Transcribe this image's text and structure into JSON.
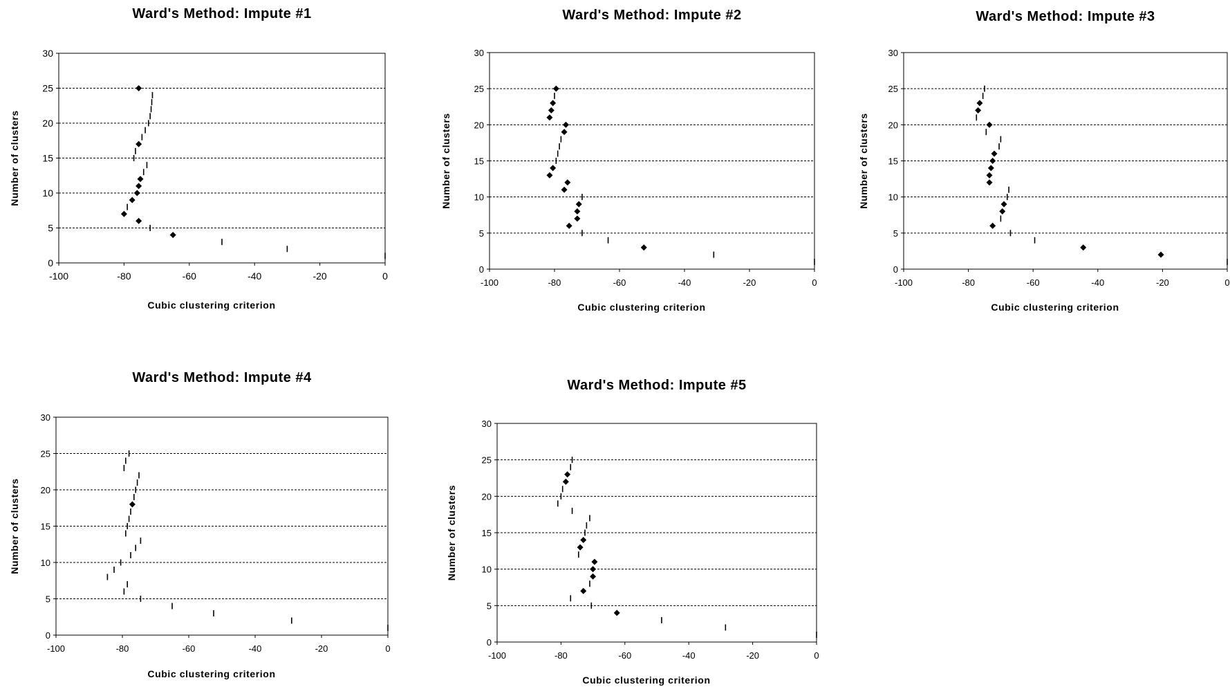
{
  "chart_data": [
    {
      "type": "scatter",
      "title": "Ward's Method: Impute #1",
      "xlabel": "Cubic clustering criterion",
      "ylabel": "Number of clusters",
      "xlim": [
        -100,
        0
      ],
      "ylim": [
        0,
        30
      ],
      "xticks": [
        "-100",
        "-80",
        "-60",
        "-40",
        "-20",
        "0"
      ],
      "yticks": [
        "0",
        "5",
        "10",
        "15",
        "20",
        "25",
        "30"
      ],
      "grid": "horizontal dashed",
      "legend": "none",
      "points": [
        {
          "n": 1,
          "ccc": 0,
          "marker": "dash"
        },
        {
          "n": 2,
          "ccc": -30,
          "marker": "dash"
        },
        {
          "n": 3,
          "ccc": -50,
          "marker": "dash"
        },
        {
          "n": 4,
          "ccc": -65,
          "marker": "diamond"
        },
        {
          "n": 5,
          "ccc": -72,
          "marker": "dash"
        },
        {
          "n": 6,
          "ccc": -75.5,
          "marker": "diamond"
        },
        {
          "n": 7,
          "ccc": -80,
          "marker": "diamond"
        },
        {
          "n": 8,
          "ccc": -79,
          "marker": "dash"
        },
        {
          "n": 9,
          "ccc": -77.5,
          "marker": "diamond"
        },
        {
          "n": 10,
          "ccc": -76,
          "marker": "diamond"
        },
        {
          "n": 11,
          "ccc": -75.5,
          "marker": "diamond"
        },
        {
          "n": 12,
          "ccc": -75,
          "marker": "diamond"
        },
        {
          "n": 13,
          "ccc": -74,
          "marker": "dash"
        },
        {
          "n": 14,
          "ccc": -73,
          "marker": "dash"
        },
        {
          "n": 15,
          "ccc": -77,
          "marker": "dash"
        },
        {
          "n": 16,
          "ccc": -76.5,
          "marker": "dash"
        },
        {
          "n": 17,
          "ccc": -75.5,
          "marker": "diamond"
        },
        {
          "n": 18,
          "ccc": -74.5,
          "marker": "dash"
        },
        {
          "n": 19,
          "ccc": -73.5,
          "marker": "dash"
        },
        {
          "n": 20,
          "ccc": -72.5,
          "marker": "dash"
        },
        {
          "n": 21,
          "ccc": -72,
          "marker": "dash"
        },
        {
          "n": 22,
          "ccc": -71.7,
          "marker": "dash"
        },
        {
          "n": 23,
          "ccc": -71.5,
          "marker": "dash"
        },
        {
          "n": 24,
          "ccc": -71.3,
          "marker": "dash"
        },
        {
          "n": 25,
          "ccc": -75.5,
          "marker": "diamond"
        }
      ]
    },
    {
      "type": "scatter",
      "title": "Ward's Method: Impute #2",
      "xlabel": "Cubic clustering criterion",
      "ylabel": "Number of clusters",
      "xlim": [
        -100,
        0
      ],
      "ylim": [
        0,
        30
      ],
      "xticks": [
        "-100",
        "-80",
        "-60",
        "-40",
        "-20",
        "0"
      ],
      "yticks": [
        "0",
        "5",
        "10",
        "15",
        "20",
        "25",
        "30"
      ],
      "grid": "horizontal dashed",
      "legend": "none",
      "points": [
        {
          "n": 1,
          "ccc": 0,
          "marker": "dash"
        },
        {
          "n": 2,
          "ccc": -31,
          "marker": "dash"
        },
        {
          "n": 3,
          "ccc": -52.5,
          "marker": "diamond"
        },
        {
          "n": 4,
          "ccc": -63.5,
          "marker": "dash"
        },
        {
          "n": 5,
          "ccc": -71.5,
          "marker": "dash"
        },
        {
          "n": 6,
          "ccc": -75.5,
          "marker": "diamond"
        },
        {
          "n": 7,
          "ccc": -73,
          "marker": "diamond"
        },
        {
          "n": 8,
          "ccc": -73,
          "marker": "diamond"
        },
        {
          "n": 9,
          "ccc": -72.5,
          "marker": "diamond"
        },
        {
          "n": 10,
          "ccc": -71.5,
          "marker": "dash"
        },
        {
          "n": 11,
          "ccc": -77,
          "marker": "diamond"
        },
        {
          "n": 12,
          "ccc": -76,
          "marker": "diamond"
        },
        {
          "n": 13,
          "ccc": -81.5,
          "marker": "diamond"
        },
        {
          "n": 14,
          "ccc": -80.5,
          "marker": "diamond"
        },
        {
          "n": 15,
          "ccc": -79.5,
          "marker": "dash"
        },
        {
          "n": 16,
          "ccc": -79,
          "marker": "dash"
        },
        {
          "n": 17,
          "ccc": -78.5,
          "marker": "dash"
        },
        {
          "n": 18,
          "ccc": -78,
          "marker": "dash"
        },
        {
          "n": 19,
          "ccc": -77,
          "marker": "diamond"
        },
        {
          "n": 20,
          "ccc": -76.5,
          "marker": "diamond"
        },
        {
          "n": 21,
          "ccc": -81.5,
          "marker": "diamond"
        },
        {
          "n": 22,
          "ccc": -81,
          "marker": "diamond"
        },
        {
          "n": 23,
          "ccc": -80.5,
          "marker": "diamond"
        },
        {
          "n": 24,
          "ccc": -80,
          "marker": "dash"
        },
        {
          "n": 25,
          "ccc": -79.5,
          "marker": "diamond"
        }
      ]
    },
    {
      "type": "scatter",
      "title": "Ward's Method: Impute #3",
      "xlabel": "Cubic clustering criterion",
      "ylabel": "Number of clusters",
      "xlim": [
        -100,
        0
      ],
      "ylim": [
        0,
        30
      ],
      "xticks": [
        "-100",
        "-80",
        "-60",
        "-40",
        "-20",
        "0"
      ],
      "yticks": [
        "0",
        "5",
        "10",
        "15",
        "20",
        "25",
        "30"
      ],
      "grid": "horizontal dashed",
      "legend": "none",
      "points": [
        {
          "n": 1,
          "ccc": 0,
          "marker": "dash"
        },
        {
          "n": 2,
          "ccc": -20.5,
          "marker": "diamond"
        },
        {
          "n": 3,
          "ccc": -44.5,
          "marker": "diamond"
        },
        {
          "n": 4,
          "ccc": -59.5,
          "marker": "dash"
        },
        {
          "n": 5,
          "ccc": -67,
          "marker": "dash"
        },
        {
          "n": 6,
          "ccc": -72.5,
          "marker": "diamond"
        },
        {
          "n": 7,
          "ccc": -70,
          "marker": "dash"
        },
        {
          "n": 8,
          "ccc": -69.5,
          "marker": "diamond"
        },
        {
          "n": 9,
          "ccc": -69,
          "marker": "diamond"
        },
        {
          "n": 10,
          "ccc": -68,
          "marker": "dash"
        },
        {
          "n": 11,
          "ccc": -67.5,
          "marker": "dash"
        },
        {
          "n": 12,
          "ccc": -73.5,
          "marker": "diamond"
        },
        {
          "n": 13,
          "ccc": -73.5,
          "marker": "diamond"
        },
        {
          "n": 14,
          "ccc": -73,
          "marker": "diamond"
        },
        {
          "n": 15,
          "ccc": -72.5,
          "marker": "diamond"
        },
        {
          "n": 16,
          "ccc": -72,
          "marker": "diamond"
        },
        {
          "n": 17,
          "ccc": -70.5,
          "marker": "dash"
        },
        {
          "n": 18,
          "ccc": -70,
          "marker": "dash"
        },
        {
          "n": 19,
          "ccc": -74.5,
          "marker": "dash"
        },
        {
          "n": 20,
          "ccc": -73.5,
          "marker": "diamond"
        },
        {
          "n": 21,
          "ccc": -77.5,
          "marker": "dash"
        },
        {
          "n": 22,
          "ccc": -77,
          "marker": "diamond"
        },
        {
          "n": 23,
          "ccc": -76.5,
          "marker": "diamond"
        },
        {
          "n": 24,
          "ccc": -75.5,
          "marker": "dash"
        },
        {
          "n": 25,
          "ccc": -75,
          "marker": "dash"
        }
      ]
    },
    {
      "type": "scatter",
      "title": "Ward's Method: Impute #4",
      "xlabel": "Cubic clustering criterion",
      "ylabel": "Number of clusters",
      "xlim": [
        -100,
        0
      ],
      "ylim": [
        0,
        30
      ],
      "xticks": [
        "-100",
        "-80",
        "-60",
        "-40",
        "-20",
        "0"
      ],
      "yticks": [
        "0",
        "5",
        "10",
        "15",
        "20",
        "25",
        "30"
      ],
      "grid": "horizontal dashed",
      "legend": "none",
      "points": [
        {
          "n": 1,
          "ccc": 0,
          "marker": "dash"
        },
        {
          "n": 2,
          "ccc": -29,
          "marker": "dash"
        },
        {
          "n": 3,
          "ccc": -52.5,
          "marker": "dash"
        },
        {
          "n": 4,
          "ccc": -65,
          "marker": "dash"
        },
        {
          "n": 5,
          "ccc": -74.5,
          "marker": "dash"
        },
        {
          "n": 6,
          "ccc": -79.5,
          "marker": "dash"
        },
        {
          "n": 7,
          "ccc": -78.5,
          "marker": "dash"
        },
        {
          "n": 8,
          "ccc": -84.5,
          "marker": "dash"
        },
        {
          "n": 9,
          "ccc": -82.5,
          "marker": "dash"
        },
        {
          "n": 10,
          "ccc": -80.5,
          "marker": "dash"
        },
        {
          "n": 11,
          "ccc": -77.5,
          "marker": "dash"
        },
        {
          "n": 12,
          "ccc": -76,
          "marker": "dash"
        },
        {
          "n": 13,
          "ccc": -74.5,
          "marker": "dash"
        },
        {
          "n": 14,
          "ccc": -79,
          "marker": "dash"
        },
        {
          "n": 15,
          "ccc": -78.5,
          "marker": "dash"
        },
        {
          "n": 16,
          "ccc": -78,
          "marker": "dash"
        },
        {
          "n": 17,
          "ccc": -77.5,
          "marker": "dash"
        },
        {
          "n": 18,
          "ccc": -77,
          "marker": "diamond"
        },
        {
          "n": 19,
          "ccc": -76.5,
          "marker": "dash"
        },
        {
          "n": 20,
          "ccc": -76,
          "marker": "dash"
        },
        {
          "n": 21,
          "ccc": -75.5,
          "marker": "dash"
        },
        {
          "n": 22,
          "ccc": -75,
          "marker": "dash"
        },
        {
          "n": 23,
          "ccc": -79.5,
          "marker": "dash"
        },
        {
          "n": 24,
          "ccc": -79,
          "marker": "dash"
        },
        {
          "n": 25,
          "ccc": -78,
          "marker": "dash"
        }
      ]
    },
    {
      "type": "scatter",
      "title": "Ward's Method: Impute #5",
      "xlabel": "Cubic clustering criterion",
      "ylabel": "Number of clusters",
      "xlim": [
        -100,
        0
      ],
      "ylim": [
        0,
        30
      ],
      "xticks": [
        "-100",
        "-80",
        "-60",
        "-40",
        "-20",
        "0"
      ],
      "yticks": [
        "0",
        "5",
        "10",
        "15",
        "20",
        "25",
        "30"
      ],
      "grid": "horizontal dashed",
      "legend": "none",
      "points": [
        {
          "n": 1,
          "ccc": 0,
          "marker": "dash"
        },
        {
          "n": 2,
          "ccc": -28.5,
          "marker": "dash"
        },
        {
          "n": 3,
          "ccc": -48.5,
          "marker": "dash"
        },
        {
          "n": 4,
          "ccc": -62.5,
          "marker": "diamond"
        },
        {
          "n": 5,
          "ccc": -70.5,
          "marker": "dash"
        },
        {
          "n": 6,
          "ccc": -77,
          "marker": "dash"
        },
        {
          "n": 7,
          "ccc": -73,
          "marker": "diamond"
        },
        {
          "n": 8,
          "ccc": -71,
          "marker": "dash"
        },
        {
          "n": 9,
          "ccc": -70,
          "marker": "diamond"
        },
        {
          "n": 10,
          "ccc": -70,
          "marker": "diamond"
        },
        {
          "n": 11,
          "ccc": -69.5,
          "marker": "diamond"
        },
        {
          "n": 12,
          "ccc": -74.5,
          "marker": "dash"
        },
        {
          "n": 13,
          "ccc": -74,
          "marker": "diamond"
        },
        {
          "n": 14,
          "ccc": -73,
          "marker": "diamond"
        },
        {
          "n": 15,
          "ccc": -72.5,
          "marker": "dash"
        },
        {
          "n": 16,
          "ccc": -72,
          "marker": "dash"
        },
        {
          "n": 17,
          "ccc": -71,
          "marker": "dash"
        },
        {
          "n": 18,
          "ccc": -76.5,
          "marker": "dash"
        },
        {
          "n": 19,
          "ccc": -81,
          "marker": "dash"
        },
        {
          "n": 20,
          "ccc": -80,
          "marker": "dash"
        },
        {
          "n": 21,
          "ccc": -79.5,
          "marker": "dash"
        },
        {
          "n": 22,
          "ccc": -78.5,
          "marker": "diamond"
        },
        {
          "n": 23,
          "ccc": -78,
          "marker": "diamond"
        },
        {
          "n": 24,
          "ccc": -77,
          "marker": "dash"
        },
        {
          "n": 25,
          "ccc": -76.5,
          "marker": "dash"
        }
      ]
    }
  ]
}
